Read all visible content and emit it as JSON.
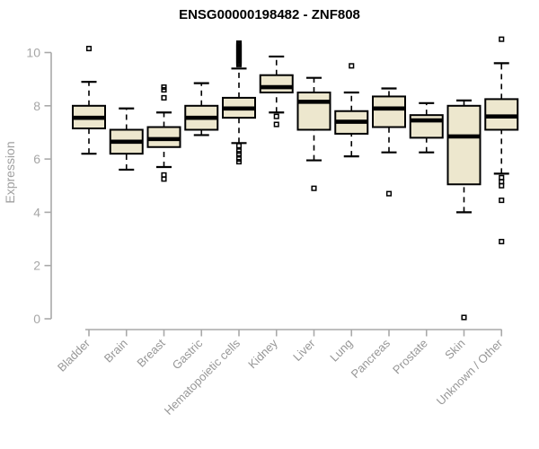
{
  "window": {
    "background": "#FFFFFF"
  },
  "colors": {
    "box_fill": "#EDE7CE",
    "box_stroke": "#000000",
    "median_line": "#000000",
    "whisker": "#000000",
    "outlier": "#000000",
    "axis_line": "#A9A9A9",
    "y_tick_label": "#A6A6A6",
    "x_tick_label": "#979797",
    "title_color": "#000000",
    "ylabel_color": "#A0A0A0"
  },
  "chart_data": {
    "type": "boxplot",
    "title": "ENSG00000198482 - ZNF808",
    "ylabel": "Expression",
    "xlabel": "",
    "ylim": [
      0,
      10
    ],
    "yticks": [
      0,
      2,
      4,
      6,
      8,
      10
    ],
    "grid": false,
    "legend": "none",
    "categories": [
      "Bladder",
      "Brain",
      "Breast",
      "Gastric",
      "Hematopoietic cells",
      "Kidney",
      "Liver",
      "Lung",
      "Pancreas",
      "Prostate",
      "Skin",
      "Unknown / Other"
    ],
    "series": [
      {
        "name": "Bladder",
        "whisker_low": 6.2,
        "q1": 7.15,
        "median": 7.55,
        "q3": 8.0,
        "whisker_high": 8.9,
        "outliers": [
          10.15
        ]
      },
      {
        "name": "Brain",
        "whisker_low": 5.6,
        "q1": 6.2,
        "median": 6.65,
        "q3": 7.1,
        "whisker_high": 7.9,
        "outliers": []
      },
      {
        "name": "Breast",
        "whisker_low": 5.7,
        "q1": 6.45,
        "median": 6.75,
        "q3": 7.2,
        "whisker_high": 7.75,
        "outliers": [
          8.7,
          8.6,
          8.3,
          5.4,
          5.25
        ]
      },
      {
        "name": "Gastric",
        "whisker_low": 6.9,
        "q1": 7.1,
        "median": 7.55,
        "q3": 8.0,
        "whisker_high": 8.85,
        "outliers": []
      },
      {
        "name": "Hematopoietic cells",
        "whisker_low": 6.6,
        "q1": 7.55,
        "median": 7.9,
        "q3": 8.3,
        "whisker_high": 9.4,
        "outliers": [
          9.55,
          9.6,
          9.65,
          9.7,
          9.75,
          9.8,
          9.85,
          9.9,
          9.95,
          10.0,
          10.05,
          10.1,
          10.15,
          10.2,
          10.25,
          10.3,
          10.35,
          6.5,
          6.3,
          6.2,
          6.0,
          5.9
        ]
      },
      {
        "name": "Kidney",
        "whisker_low": 7.75,
        "q1": 8.5,
        "median": 8.7,
        "q3": 9.15,
        "whisker_high": 9.85,
        "outliers": [
          7.6,
          7.3
        ]
      },
      {
        "name": "Liver",
        "whisker_low": 5.95,
        "q1": 7.1,
        "median": 8.15,
        "q3": 8.5,
        "whisker_high": 9.05,
        "outliers": [
          4.9
        ]
      },
      {
        "name": "Lung",
        "whisker_low": 6.1,
        "q1": 6.95,
        "median": 7.4,
        "q3": 7.8,
        "whisker_high": 8.5,
        "outliers": [
          9.5
        ]
      },
      {
        "name": "Pancreas",
        "whisker_low": 6.25,
        "q1": 7.2,
        "median": 7.9,
        "q3": 8.35,
        "whisker_high": 8.65,
        "outliers": [
          4.7
        ]
      },
      {
        "name": "Prostate",
        "whisker_low": 6.25,
        "q1": 6.8,
        "median": 7.45,
        "q3": 7.65,
        "whisker_high": 8.1,
        "outliers": []
      },
      {
        "name": "Skin",
        "whisker_low": 4.0,
        "q1": 5.05,
        "median": 6.85,
        "q3": 8.0,
        "whisker_high": 8.2,
        "outliers": [
          0.05
        ]
      },
      {
        "name": "Unknown / Other",
        "whisker_low": 5.45,
        "q1": 7.1,
        "median": 7.6,
        "q3": 8.25,
        "whisker_high": 9.6,
        "outliers": [
          10.5,
          5.3,
          5.15,
          5.0,
          4.45,
          2.9
        ]
      }
    ]
  }
}
